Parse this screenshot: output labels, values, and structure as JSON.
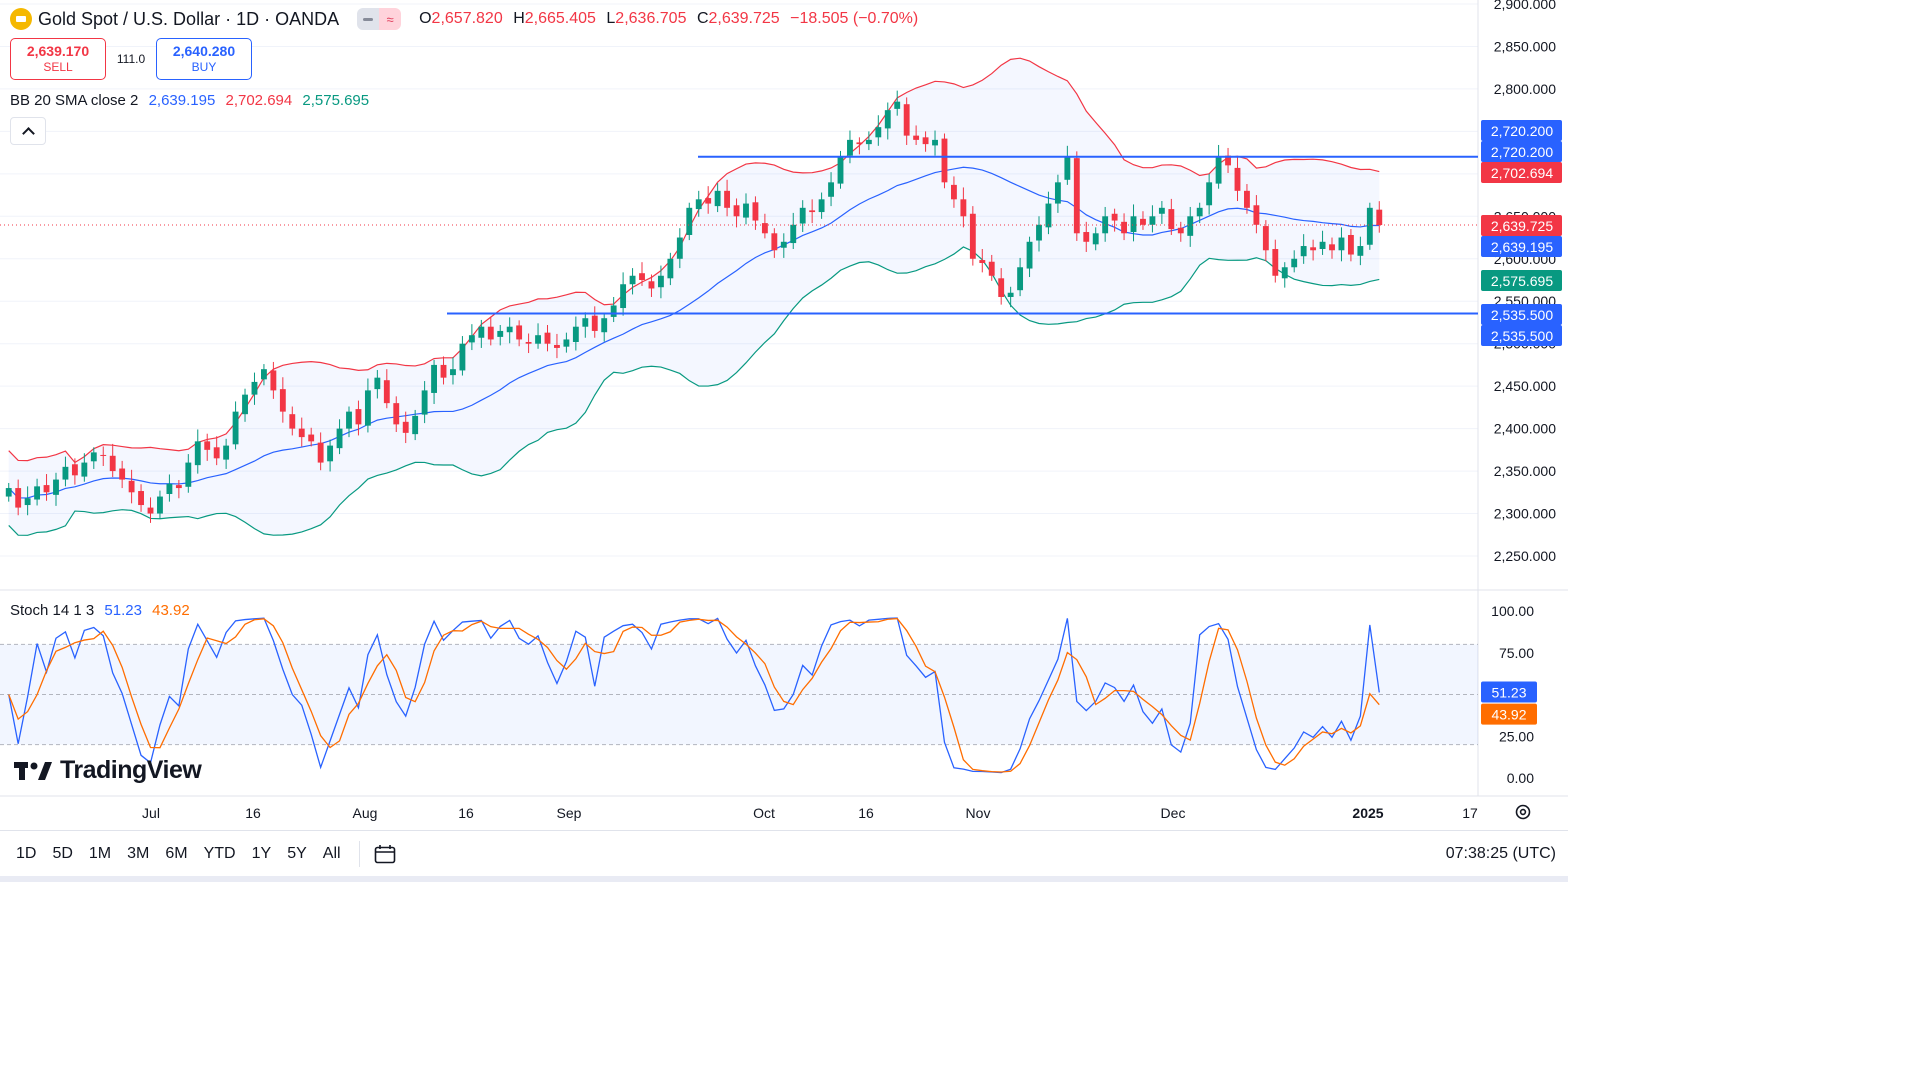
{
  "header": {
    "symbol": "Gold Spot / U.S. Dollar · 1D · OANDA",
    "ohlc": [
      {
        "k": "O",
        "v": "2,657.820"
      },
      {
        "k": "H",
        "v": "2,665.405"
      },
      {
        "k": "L",
        "v": "2,636.705"
      },
      {
        "k": "C",
        "v": "2,639.725"
      }
    ],
    "change": "−18.505 (−0.70%)"
  },
  "trade": {
    "sell_price": "2,639.170",
    "sell_label": "SELL",
    "spread": "111.0",
    "buy_price": "2,640.280",
    "buy_label": "BUY"
  },
  "bb": {
    "name": "BB 20 SMA close 2",
    "basis": "2,639.195",
    "upper": "2,702.694",
    "lower": "2,575.695"
  },
  "stoch": {
    "name": "Stoch 14 1 3",
    "k": "51.23",
    "d": "43.92"
  },
  "logo": "TradingView",
  "ranges": [
    "1D",
    "5D",
    "1M",
    "3M",
    "6M",
    "YTD",
    "1Y",
    "5Y",
    "All"
  ],
  "clock": "07:38:25 (UTC)",
  "colors": {
    "up": "#089981",
    "down": "#f23645",
    "blue": "#2962ff",
    "bbBasis": "#2962ff",
    "bbUpper": "#f23645",
    "bbLower": "#089981",
    "stochK": "#2962ff",
    "stochD": "#ff6d00"
  },
  "chart_data": {
    "type": "candlestick",
    "y_axis": {
      "min": 2250,
      "max": 2900,
      "ticks": [
        "2,250.000",
        "2,300.000",
        "2,350.000",
        "2,400.000",
        "2,450.000",
        "2,500.000",
        "2,550.000",
        "2,600.000",
        "2,650.000",
        "2,700.000",
        "2,750.000",
        "2,800.000",
        "2,850.000",
        "2,900.000"
      ]
    },
    "x_ticks": [
      "Jul",
      "16",
      "Aug",
      "16",
      "Sep",
      "Oct",
      "16",
      "Nov",
      "Dec",
      "2025",
      "17"
    ],
    "horizontal_lines": [
      2720.2,
      2535.5
    ],
    "price_labels": [
      {
        "text": "2,720.200",
        "color": "#2962ff"
      },
      {
        "text": "2,720.200",
        "color": "#2962ff"
      },
      {
        "text": "2,702.694",
        "color": "#f23645"
      },
      {
        "text": "2,639.725",
        "color": "#f23645"
      },
      {
        "text": "2,639.195",
        "color": "#2962ff"
      },
      {
        "text": "2,575.695",
        "color": "#089981"
      },
      {
        "text": "2,535.500",
        "color": "#2962ff"
      },
      {
        "text": "2,535.500",
        "color": "#2962ff"
      }
    ],
    "closes": [
      2330,
      2307,
      2318,
      2332,
      2325,
      2340,
      2355,
      2345,
      2360,
      2372,
      2368,
      2350,
      2340,
      2325,
      2310,
      2300,
      2320,
      2335,
      2330,
      2360,
      2385,
      2375,
      2365,
      2380,
      2420,
      2440,
      2455,
      2470,
      2445,
      2420,
      2400,
      2390,
      2385,
      2360,
      2380,
      2400,
      2420,
      2405,
      2445,
      2460,
      2430,
      2405,
      2395,
      2415,
      2445,
      2475,
      2460,
      2470,
      2500,
      2510,
      2520,
      2505,
      2515,
      2520,
      2505,
      2500,
      2510,
      2500,
      2495,
      2505,
      2520,
      2530,
      2515,
      2530,
      2545,
      2570,
      2580,
      2575,
      2565,
      2580,
      2600,
      2625,
      2660,
      2670,
      2665,
      2680,
      2660,
      2650,
      2665,
      2645,
      2630,
      2610,
      2620,
      2640,
      2660,
      2655,
      2670,
      2690,
      2720,
      2740,
      2735,
      2740,
      2755,
      2775,
      2785,
      2745,
      2740,
      2735,
      2740,
      2690,
      2670,
      2650,
      2600,
      2595,
      2580,
      2555,
      2560,
      2590,
      2620,
      2640,
      2665,
      2690,
      2720,
      2630,
      2620,
      2630,
      2650,
      2645,
      2630,
      2650,
      2640,
      2650,
      2660,
      2635,
      2630,
      2650,
      2660,
      2690,
      2720,
      2710,
      2680,
      2660,
      2640,
      2610,
      2580,
      2590,
      2600,
      2615,
      2610,
      2620,
      2610,
      2625,
      2605,
      2615,
      2660,
      2639.725
    ],
    "bb_upper": 2702.694,
    "bb_basis": 2639.195,
    "bb_lower": 2575.695,
    "stoch_levels": [
      80,
      50,
      20
    ],
    "stoch_ticks": [
      "100.00",
      "75.00",
      "50.00",
      "25.00",
      "0.00"
    ],
    "stoch_k_last": 51.23,
    "stoch_d_last": 43.92
  }
}
